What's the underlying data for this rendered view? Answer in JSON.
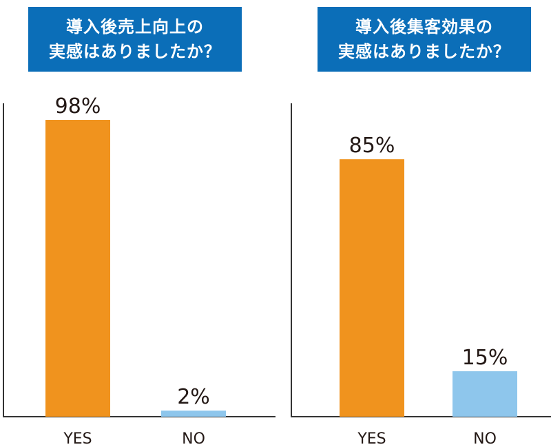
{
  "colors": {
    "title_bg": "#0b6eb8",
    "title_text": "#ffffff",
    "yes": "#f0931e",
    "no": "#8ec6ec",
    "axis": "#333333",
    "text": "#231815"
  },
  "chart_data": [
    {
      "type": "bar",
      "title": [
        "導入後売上向上の",
        "実感はありましたか？"
      ],
      "categories": [
        "YES",
        "NO"
      ],
      "values": [
        98,
        2
      ],
      "value_labels": [
        "98%",
        "2%"
      ],
      "ylim": [
        0,
        100
      ],
      "grid": false
    },
    {
      "type": "bar",
      "title": [
        "導入後集客効果の",
        "実感はありましたか？"
      ],
      "categories": [
        "YES",
        "NO"
      ],
      "values": [
        85,
        15
      ],
      "value_labels": [
        "85%",
        "15%"
      ],
      "ylim": [
        0,
        100
      ],
      "grid": false
    }
  ]
}
